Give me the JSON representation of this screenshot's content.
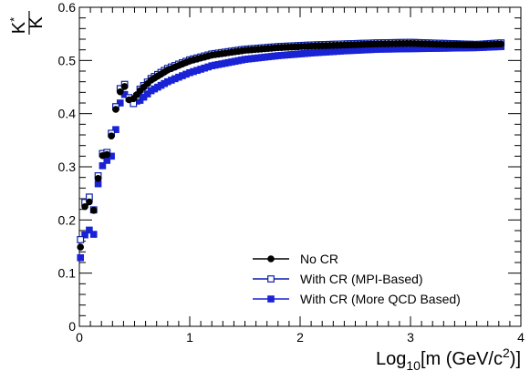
{
  "chart_data": {
    "type": "scatter",
    "title": "",
    "xlabel": "Log10[m (GeV/c2)]",
    "ylabel": "K*/K",
    "xlabel_parts": {
      "main": "Log",
      "sub": "10",
      "mid": "[m (GeV/c",
      "sup": "2",
      "end": ")]"
    },
    "ylabel_parts": {
      "num": "K",
      "num_sup": "*",
      "den": "K"
    },
    "xlim": [
      0,
      4
    ],
    "ylim": [
      0,
      0.6
    ],
    "x_ticks": [
      {
        "value": 0,
        "label": "0"
      },
      {
        "value": 1,
        "label": "1"
      },
      {
        "value": 2,
        "label": "2"
      },
      {
        "value": 3,
        "label": "3"
      },
      {
        "value": 4,
        "label": "4"
      }
    ],
    "y_ticks": [
      {
        "value": 0,
        "label": "0"
      },
      {
        "value": 0.1,
        "label": "0.1"
      },
      {
        "value": 0.2,
        "label": "0.2"
      },
      {
        "value": 0.3,
        "label": "0.3"
      },
      {
        "value": 0.4,
        "label": "0.4"
      },
      {
        "value": 0.5,
        "label": "0.5"
      },
      {
        "value": 0.6,
        "label": "0.6"
      }
    ],
    "grid": false,
    "legend_position": "bottom-right",
    "series": [
      {
        "name": "No CR",
        "marker": "circle",
        "color": "#000000",
        "x": [
          0.01,
          0.05,
          0.09,
          0.13,
          0.17,
          0.21,
          0.25,
          0.29,
          0.33,
          0.37,
          0.41,
          0.45,
          0.49,
          0.55,
          0.65,
          0.8,
          1.0,
          1.2,
          1.5,
          1.8,
          2.1,
          2.4,
          2.7,
          3.0,
          3.3,
          3.6,
          3.82
        ],
        "y": [
          0.149,
          0.225,
          0.234,
          0.218,
          0.278,
          0.321,
          0.323,
          0.358,
          0.408,
          0.441,
          0.451,
          0.426,
          0.428,
          0.443,
          0.463,
          0.482,
          0.499,
          0.51,
          0.519,
          0.524,
          0.527,
          0.529,
          0.531,
          0.532,
          0.53,
          0.529,
          0.531
        ]
      },
      {
        "name": "With CR (MPI-Based)",
        "marker": "open-square",
        "color": "#0a1fa8",
        "x": [
          0.01,
          0.05,
          0.09,
          0.13,
          0.17,
          0.21,
          0.25,
          0.29,
          0.33,
          0.37,
          0.41,
          0.45,
          0.49,
          0.55,
          0.65,
          0.8,
          1.0,
          1.2,
          1.5,
          1.8,
          2.1,
          2.4,
          2.7,
          3.0,
          3.3,
          3.6,
          3.82
        ],
        "y": [
          0.163,
          0.233,
          0.243,
          0.219,
          0.283,
          0.325,
          0.327,
          0.363,
          0.413,
          0.447,
          0.455,
          0.43,
          0.419,
          0.446,
          0.466,
          0.485,
          0.501,
          0.512,
          0.521,
          0.526,
          0.529,
          0.531,
          0.533,
          0.534,
          0.532,
          0.53,
          0.533
        ]
      },
      {
        "name": "With CR (More QCD Based)",
        "marker": "square",
        "color": "#1a22d6",
        "x": [
          0.01,
          0.05,
          0.09,
          0.13,
          0.17,
          0.21,
          0.25,
          0.29,
          0.33,
          0.37,
          0.41,
          0.45,
          0.49,
          0.55,
          0.65,
          0.8,
          1.0,
          1.2,
          1.5,
          1.8,
          2.1,
          2.4,
          2.7,
          3.0,
          3.3,
          3.6,
          3.82
        ],
        "y": [
          0.129,
          0.172,
          0.181,
          0.173,
          0.268,
          0.302,
          0.312,
          0.32,
          0.37,
          0.42,
          0.436,
          0.429,
          0.422,
          0.425,
          0.443,
          0.46,
          0.477,
          0.49,
          0.502,
          0.509,
          0.514,
          0.518,
          0.521,
          0.522,
          0.523,
          0.524,
          0.526
        ]
      }
    ]
  }
}
